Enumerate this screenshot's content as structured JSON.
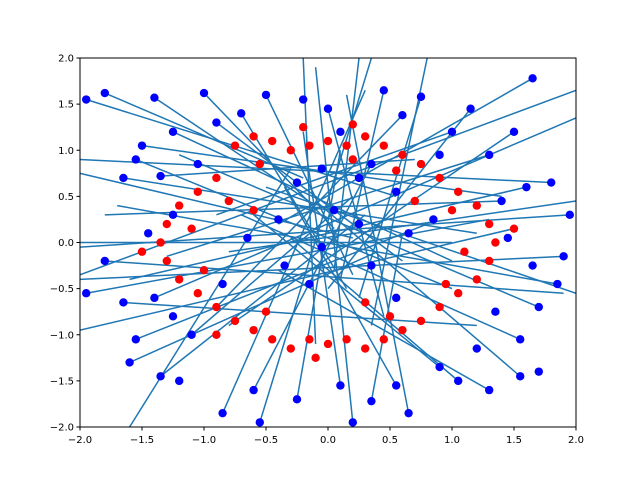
{
  "chart_data": {
    "type": "scatter",
    "title": "",
    "xlabel": "",
    "ylabel": "",
    "xlim": [
      -2.0,
      2.0
    ],
    "ylim": [
      -2.0,
      2.0
    ],
    "grid": false,
    "legend": "none",
    "x_ticks": [
      "−2.0",
      "−1.5",
      "−1.0",
      "−0.5",
      "0.0",
      "0.5",
      "1.0",
      "1.5",
      "2.0"
    ],
    "y_ticks": [
      "−2.0",
      "−1.5",
      "−1.0",
      "−0.5",
      "0.0",
      "0.5",
      "1.0",
      "1.5",
      "2.0"
    ],
    "series": [
      {
        "marker_color": "#ff0000",
        "points": [
          [
            -0.75,
            1.05
          ],
          [
            -0.6,
            1.15
          ],
          [
            -0.45,
            1.1
          ],
          [
            -0.3,
            1.0
          ],
          [
            -0.15,
            1.05
          ],
          [
            0.0,
            1.1
          ],
          [
            0.15,
            1.05
          ],
          [
            0.3,
            1.15
          ],
          [
            0.45,
            1.05
          ],
          [
            0.6,
            0.95
          ],
          [
            0.75,
            0.85
          ],
          [
            0.9,
            0.7
          ],
          [
            1.05,
            0.55
          ],
          [
            1.2,
            0.4
          ],
          [
            1.3,
            0.2
          ],
          [
            1.35,
            0.0
          ],
          [
            1.3,
            -0.2
          ],
          [
            1.2,
            -0.4
          ],
          [
            1.05,
            -0.55
          ],
          [
            0.9,
            -0.7
          ],
          [
            0.75,
            -0.85
          ],
          [
            0.6,
            -0.95
          ],
          [
            0.45,
            -1.05
          ],
          [
            0.3,
            -1.15
          ],
          [
            0.15,
            -1.05
          ],
          [
            0.0,
            -1.1
          ],
          [
            -0.15,
            -1.05
          ],
          [
            -0.3,
            -1.15
          ],
          [
            -0.45,
            -1.05
          ],
          [
            -0.6,
            -0.95
          ],
          [
            -0.75,
            -0.85
          ],
          [
            -0.9,
            -0.7
          ],
          [
            -1.05,
            -0.55
          ],
          [
            -1.2,
            -0.4
          ],
          [
            -1.3,
            -0.2
          ],
          [
            -1.35,
            0.0
          ],
          [
            -1.3,
            0.2
          ],
          [
            -1.2,
            0.4
          ],
          [
            -1.05,
            0.55
          ],
          [
            -0.9,
            0.7
          ],
          [
            -0.55,
            0.85
          ],
          [
            -0.2,
            1.25
          ],
          [
            0.2,
            1.28
          ],
          [
            0.55,
            0.78
          ],
          [
            1.0,
            0.35
          ],
          [
            1.1,
            -0.1
          ],
          [
            0.95,
            -0.45
          ],
          [
            0.5,
            -0.8
          ],
          [
            -0.1,
            -1.25
          ],
          [
            -0.5,
            -0.75
          ],
          [
            -1.0,
            -0.3
          ],
          [
            -1.1,
            0.15
          ],
          [
            -0.8,
            0.45
          ],
          [
            0.3,
            -0.65
          ],
          [
            0.7,
            0.45
          ],
          [
            -0.6,
            0.35
          ],
          [
            0.2,
            0.9
          ],
          [
            -0.9,
            -1.0
          ],
          [
            1.5,
            0.15
          ],
          [
            -1.5,
            -0.1
          ]
        ]
      },
      {
        "marker_color": "#0000ff",
        "points": [
          [
            -1.8,
            1.62
          ],
          [
            -1.4,
            1.57
          ],
          [
            -1.0,
            1.62
          ],
          [
            -0.5,
            1.6
          ],
          [
            0.45,
            1.65
          ],
          [
            0.75,
            1.58
          ],
          [
            1.15,
            1.45
          ],
          [
            1.65,
            1.78
          ],
          [
            -1.95,
            1.55
          ],
          [
            -0.9,
            1.3
          ],
          [
            -1.65,
            0.7
          ],
          [
            -1.55,
            0.9
          ],
          [
            -1.35,
            0.72
          ],
          [
            -0.25,
            0.65
          ],
          [
            -0.05,
            0.8
          ],
          [
            0.25,
            0.7
          ],
          [
            0.55,
            0.55
          ],
          [
            0.35,
            0.85
          ],
          [
            1.4,
            0.45
          ],
          [
            1.6,
            0.6
          ],
          [
            1.8,
            0.65
          ],
          [
            1.95,
            0.3
          ],
          [
            1.9,
            -0.15
          ],
          [
            1.85,
            -0.45
          ],
          [
            1.7,
            -0.7
          ],
          [
            1.55,
            -1.05
          ],
          [
            1.35,
            -0.75
          ],
          [
            1.2,
            -1.15
          ],
          [
            -1.95,
            -0.55
          ],
          [
            -1.8,
            -0.2
          ],
          [
            -1.65,
            -0.65
          ],
          [
            -1.55,
            -1.05
          ],
          [
            -1.4,
            -0.6
          ],
          [
            -1.25,
            -0.8
          ],
          [
            -1.1,
            -1.0
          ],
          [
            -1.6,
            -1.3
          ],
          [
            -1.35,
            -1.45
          ],
          [
            -1.2,
            -1.5
          ],
          [
            -0.6,
            -1.6
          ],
          [
            -0.25,
            -1.7
          ],
          [
            0.1,
            -1.55
          ],
          [
            0.35,
            -1.72
          ],
          [
            0.55,
            -1.55
          ],
          [
            0.9,
            -1.35
          ],
          [
            1.05,
            -1.5
          ],
          [
            1.3,
            -1.6
          ],
          [
            1.55,
            -1.45
          ],
          [
            1.7,
            -1.4
          ],
          [
            -0.85,
            -1.85
          ],
          [
            -0.55,
            -1.95
          ],
          [
            0.2,
            -1.95
          ],
          [
            0.65,
            -1.85
          ],
          [
            -0.35,
            -0.25
          ],
          [
            -0.05,
            -0.05
          ],
          [
            0.25,
            0.2
          ],
          [
            0.35,
            -0.25
          ],
          [
            0.65,
            0.1
          ],
          [
            -0.65,
            0.05
          ],
          [
            -0.4,
            0.25
          ],
          [
            0.05,
            0.35
          ],
          [
            -0.15,
            -0.45
          ],
          [
            0.55,
            -0.6
          ],
          [
            0.85,
            0.25
          ],
          [
            -0.85,
            -0.45
          ],
          [
            -1.25,
            0.3
          ],
          [
            -1.45,
            0.1
          ],
          [
            1.45,
            0.05
          ],
          [
            1.65,
            -0.25
          ],
          [
            -1.05,
            0.85
          ],
          [
            -0.7,
            1.4
          ],
          [
            0.0,
            1.45
          ],
          [
            0.6,
            1.38
          ],
          [
            1.0,
            1.2
          ],
          [
            1.3,
            0.95
          ],
          [
            1.5,
            1.2
          ],
          [
            -1.25,
            1.2
          ],
          [
            -1.5,
            1.05
          ],
          [
            -0.2,
            1.55
          ],
          [
            0.1,
            1.2
          ],
          [
            0.9,
            0.95
          ]
        ]
      }
    ],
    "segments": [
      [
        -1.8,
        1.62,
        -0.2,
        0.7
      ],
      [
        -1.4,
        1.57,
        -0.1,
        0.4
      ],
      [
        -1.0,
        1.62,
        0.05,
        0.15
      ],
      [
        -0.5,
        1.6,
        0.2,
        -0.35
      ],
      [
        0.45,
        1.65,
        0.1,
        -0.4
      ],
      [
        0.75,
        1.58,
        0.25,
        -0.6
      ],
      [
        1.15,
        1.45,
        0.0,
        -0.5
      ],
      [
        1.65,
        1.78,
        -0.4,
        0.2
      ],
      [
        -1.95,
        1.55,
        0.55,
        0.5
      ],
      [
        -0.9,
        1.3,
        0.6,
        -0.2
      ],
      [
        -1.65,
        0.7,
        1.2,
        0.1
      ],
      [
        -1.55,
        0.9,
        1.0,
        -0.5
      ],
      [
        -1.35,
        0.72,
        0.7,
        0.9
      ],
      [
        1.4,
        0.45,
        -1.8,
        0.3
      ],
      [
        1.6,
        0.6,
        -1.6,
        -0.4
      ],
      [
        1.8,
        0.65,
        -2.0,
        0.9
      ],
      [
        1.95,
        0.3,
        -2.0,
        -0.05
      ],
      [
        1.9,
        -0.15,
        -2.0,
        -0.4
      ],
      [
        1.85,
        -0.45,
        -1.7,
        0.4
      ],
      [
        1.7,
        -0.7,
        -1.2,
        0.95
      ],
      [
        1.55,
        -1.05,
        -0.7,
        0.3
      ],
      [
        -1.95,
        -0.55,
        1.3,
        0.25
      ],
      [
        -1.8,
        -0.2,
        1.9,
        -0.55
      ],
      [
        -1.65,
        -0.65,
        1.2,
        -0.9
      ],
      [
        -1.55,
        -1.05,
        0.8,
        0.2
      ],
      [
        -1.4,
        -0.6,
        2.0,
        1.35
      ],
      [
        -1.1,
        -1.0,
        0.2,
        0.5
      ],
      [
        -1.6,
        -1.3,
        0.4,
        -0.1
      ],
      [
        -1.35,
        -1.45,
        0.3,
        0.3
      ],
      [
        -0.6,
        -1.6,
        0.35,
        0.85
      ],
      [
        -0.25,
        -1.7,
        0.1,
        1.0
      ],
      [
        0.1,
        -1.55,
        -0.2,
        1.2
      ],
      [
        0.35,
        -1.72,
        0.6,
        0.1
      ],
      [
        0.55,
        -1.55,
        -0.35,
        0.6
      ],
      [
        0.9,
        -1.35,
        -0.6,
        0.3
      ],
      [
        1.05,
        -1.5,
        -0.3,
        0.05
      ],
      [
        1.3,
        -1.6,
        -0.4,
        -0.3
      ],
      [
        1.55,
        -1.45,
        -0.1,
        0.45
      ],
      [
        -0.85,
        -1.85,
        0.3,
        1.65
      ],
      [
        -0.55,
        -1.95,
        0.35,
        2.0
      ],
      [
        0.2,
        -1.95,
        -0.1,
        1.9
      ],
      [
        0.65,
        -1.85,
        0.15,
        1.6
      ],
      [
        -1.25,
        1.2,
        1.0,
        -0.2
      ],
      [
        -1.5,
        1.05,
        1.4,
        0.5
      ],
      [
        1.3,
        0.95,
        -1.3,
        -0.15
      ],
      [
        1.0,
        1.2,
        -0.9,
        0.3
      ],
      [
        1.5,
        1.2,
        -0.8,
        -0.9
      ],
      [
        0.0,
        1.45,
        0.45,
        -0.8
      ],
      [
        -0.7,
        1.4,
        0.15,
        -0.5
      ],
      [
        0.6,
        1.38,
        -0.9,
        -0.7
      ],
      [
        -2.0,
        0.75,
        0.2,
        0.05
      ],
      [
        -2.0,
        -0.35,
        2.0,
        1.65
      ],
      [
        -2.0,
        0.0,
        1.0,
        0.0
      ],
      [
        -2.0,
        -0.95,
        1.5,
        0.15
      ],
      [
        2.0,
        0.45,
        -0.8,
        -0.1
      ],
      [
        2.0,
        -0.55,
        -0.5,
        0.6
      ],
      [
        0.25,
        2.0,
        0.05,
        -0.3
      ],
      [
        -0.2,
        2.0,
        -0.1,
        -1.1
      ],
      [
        0.8,
        2.0,
        0.35,
        -0.9
      ],
      [
        -1.6,
        -2.0,
        -0.3,
        0.8
      ]
    ]
  }
}
